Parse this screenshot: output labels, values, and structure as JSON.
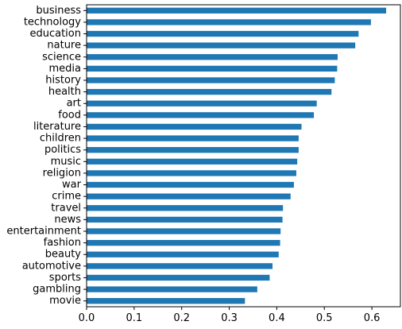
{
  "chart_data": {
    "type": "bar",
    "orientation": "horizontal",
    "bar_color": "#1f77b4",
    "categories": [
      "business",
      "technology",
      "education",
      "nature",
      "science",
      "media",
      "history",
      "health",
      "art",
      "food",
      "literature",
      "children",
      "politics",
      "music",
      "religion",
      "war",
      "crime",
      "travel",
      "news",
      "entertainment",
      "fashion",
      "beauty",
      "automotive",
      "sports",
      "gambling",
      "movie"
    ],
    "values": [
      0.63,
      0.598,
      0.572,
      0.565,
      0.528,
      0.527,
      0.522,
      0.515,
      0.484,
      0.478,
      0.452,
      0.446,
      0.446,
      0.443,
      0.441,
      0.436,
      0.429,
      0.413,
      0.412,
      0.408,
      0.407,
      0.404,
      0.391,
      0.385,
      0.359,
      0.333
    ],
    "xlim": [
      0,
      0.66
    ],
    "xticks": [
      "0.0",
      "0.1",
      "0.2",
      "0.3",
      "0.4",
      "0.5",
      "0.6"
    ],
    "tick_values": [
      0,
      0.1,
      0.2,
      0.3,
      0.4,
      0.5,
      0.6
    ],
    "title": "",
    "xlabel": "",
    "ylabel": "",
    "grid": false,
    "legend": "none"
  }
}
